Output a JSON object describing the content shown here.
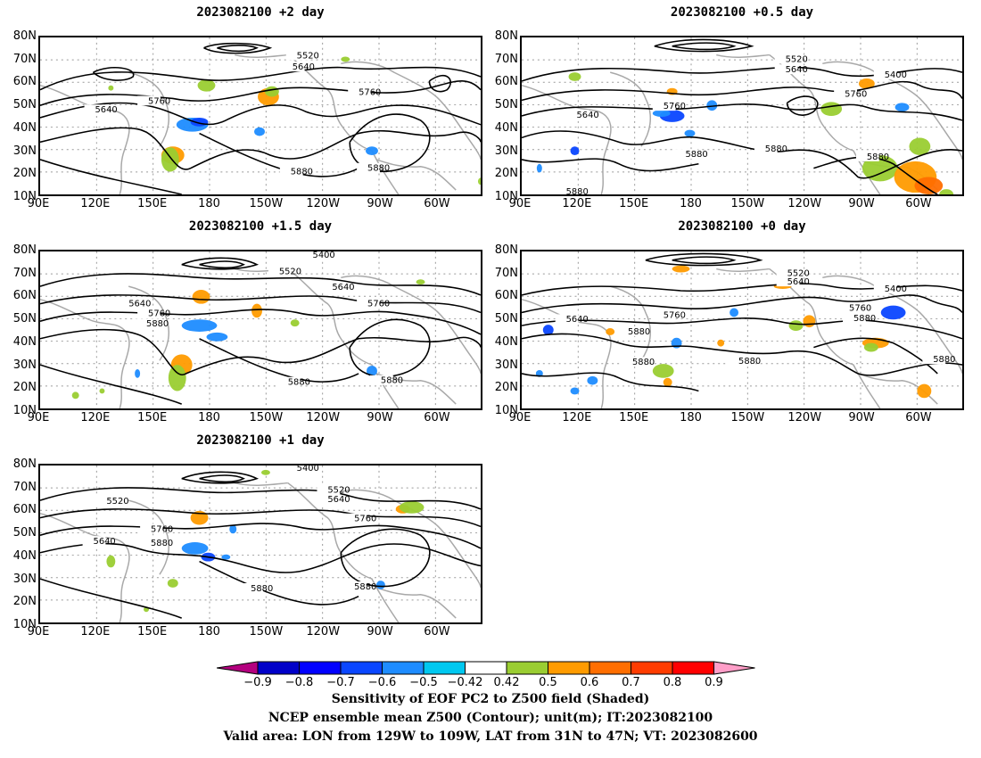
{
  "panels": [
    {
      "title": "2023082100 +2 day"
    },
    {
      "title": "2023082100 +0.5 day"
    },
    {
      "title": "2023082100 +1.5 day"
    },
    {
      "title": "2023082100 +0 day"
    },
    {
      "title": "2023082100 +1 day"
    }
  ],
  "axes": {
    "lat_labels": [
      "80N",
      "70N",
      "60N",
      "50N",
      "40N",
      "30N",
      "20N",
      "10N"
    ],
    "lon_labels": [
      "90E",
      "120E",
      "150E",
      "180",
      "150W",
      "120W",
      "90W",
      "60W"
    ]
  },
  "contour_labels": {
    "p0": [
      "5520",
      "5640",
      "5760",
      "5640",
      "5760",
      "5880",
      "5880"
    ],
    "p1": [
      "5520",
      "5640",
      "5400",
      "5760",
      "5640",
      "5760",
      "5880",
      "5880",
      "5880",
      "5880"
    ],
    "p2": [
      "5400",
      "5520",
      "5640",
      "5640",
      "5760",
      "5880",
      "5760",
      "5880",
      "5880"
    ],
    "p3": [
      "5520",
      "5640",
      "5400",
      "5640",
      "5760",
      "5760",
      "5880",
      "5880",
      "5880",
      "5880",
      "5880"
    ],
    "p4": [
      "5400",
      "5520",
      "5640",
      "5520",
      "5760",
      "5640",
      "5760",
      "5880",
      "5880",
      "5880"
    ]
  },
  "colorbar": {
    "ticks": [
      "−0.9",
      "−0.8",
      "−0.7",
      "−0.6",
      "−0.5",
      "−0.42",
      "0.42",
      "0.5",
      "0.6",
      "0.7",
      "0.8",
      "0.9"
    ],
    "colors": [
      "#b4007f",
      "#0000c8",
      "#0000ff",
      "#0a46ff",
      "#1e8cff",
      "#00c8f0",
      "#ffffff",
      "#9acd32",
      "#ff9b00",
      "#ff6e00",
      "#ff3c00",
      "#ff0000",
      "#ff9ec8"
    ]
  },
  "caption": {
    "line1": "Sensitivity of EOF PC2 to Z500 field (Shaded)",
    "line2": "NCEP ensemble mean Z500 (Contour); unit(m); IT:2023082100",
    "line3": "Valid area: LON from 129W to 109W, LAT from 31N to 47N; VT: 2023082600"
  }
}
